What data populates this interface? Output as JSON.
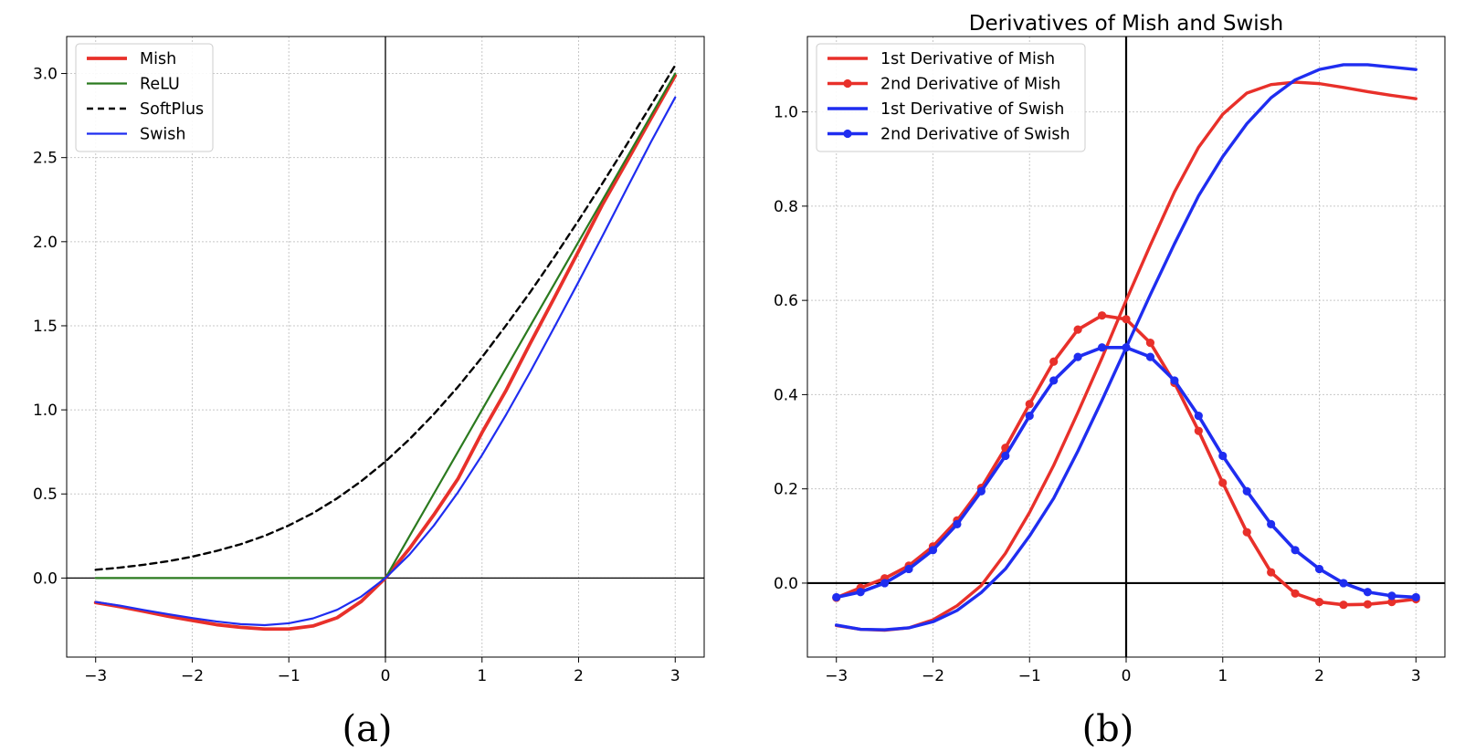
{
  "chart_data": [
    {
      "type": "line",
      "title": "",
      "caption": "(a)",
      "xlabel": "",
      "ylabel": "",
      "xlim": [
        -3.3,
        3.3
      ],
      "ylim": [
        -0.47,
        3.22
      ],
      "xticks": [
        -3,
        -2,
        -1,
        0,
        1,
        2,
        3
      ],
      "xtick_labels": [
        "−3",
        "−2",
        "−1",
        "0",
        "1",
        "2",
        "3"
      ],
      "yticks": [
        0.0,
        0.5,
        1.0,
        1.5,
        2.0,
        2.5,
        3.0
      ],
      "ytick_labels": [
        "0.0",
        "0.5",
        "1.0",
        "1.5",
        "2.0",
        "2.5",
        "3.0"
      ],
      "grid": true,
      "axis_lines_at_zero": true,
      "legend_position": "top-left",
      "x": [
        -3,
        -2.75,
        -2.5,
        -2.25,
        -2,
        -1.75,
        -1.5,
        -1.25,
        -1,
        -0.75,
        -0.5,
        -0.25,
        0,
        0.25,
        0.5,
        0.75,
        1,
        1.25,
        1.5,
        1.75,
        2,
        2.25,
        2.5,
        2.75,
        3
      ],
      "series": [
        {
          "name": "Mish",
          "color": "#e8302a",
          "style": "solid-thick",
          "values": [
            -0.146,
            -0.17,
            -0.198,
            -0.227,
            -0.252,
            -0.277,
            -0.293,
            -0.303,
            -0.303,
            -0.285,
            -0.236,
            -0.139,
            0.0,
            0.176,
            0.375,
            0.589,
            0.865,
            1.117,
            1.397,
            1.668,
            1.944,
            2.224,
            2.477,
            2.733,
            2.987
          ]
        },
        {
          "name": "ReLU",
          "color": "#2b7a1f",
          "style": "solid",
          "values": [
            0,
            0,
            0,
            0,
            0,
            0,
            0,
            0,
            0,
            0,
            0,
            0,
            0,
            0.25,
            0.5,
            0.75,
            1.0,
            1.25,
            1.5,
            1.75,
            2.0,
            2.25,
            2.5,
            2.75,
            3.0
          ]
        },
        {
          "name": "SoftPlus",
          "color": "#000000",
          "style": "dashed",
          "values": [
            0.049,
            0.062,
            0.079,
            0.1,
            0.127,
            0.161,
            0.201,
            0.251,
            0.313,
            0.386,
            0.474,
            0.576,
            0.693,
            0.826,
            0.974,
            1.136,
            1.313,
            1.503,
            1.701,
            1.91,
            2.127,
            2.35,
            2.579,
            2.812,
            3.049
          ]
        },
        {
          "name": "Swish",
          "color": "#1f2df0",
          "style": "solid",
          "values": [
            -0.142,
            -0.164,
            -0.19,
            -0.215,
            -0.238,
            -0.258,
            -0.274,
            -0.28,
            -0.269,
            -0.24,
            -0.189,
            -0.11,
            0.0,
            0.14,
            0.311,
            0.509,
            0.731,
            0.972,
            1.227,
            1.493,
            1.762,
            2.037,
            2.317,
            2.594,
            2.858
          ]
        }
      ]
    },
    {
      "type": "line",
      "title": "Derivatives of Mish and Swish",
      "caption": "(b)",
      "xlabel": "",
      "ylabel": "",
      "xlim": [
        -3.3,
        3.3
      ],
      "ylim": [
        -0.157,
        1.16
      ],
      "xticks": [
        -3,
        -2,
        -1,
        0,
        1,
        2,
        3
      ],
      "xtick_labels": [
        "−3",
        "−2",
        "−1",
        "0",
        "1",
        "2",
        "3"
      ],
      "yticks": [
        0.0,
        0.2,
        0.4,
        0.6,
        0.8,
        1.0
      ],
      "ytick_labels": [
        "0.0",
        "0.2",
        "0.4",
        "0.6",
        "0.8",
        "1.0"
      ],
      "grid": true,
      "axis_lines_at_zero": true,
      "legend_position": "top-left",
      "x": [
        -3,
        -2.75,
        -2.5,
        -2.25,
        -2,
        -1.75,
        -1.5,
        -1.25,
        -1,
        -0.75,
        -0.5,
        -0.25,
        0,
        0.25,
        0.5,
        0.75,
        1,
        1.25,
        1.5,
        1.75,
        2,
        2.25,
        2.5,
        2.75,
        3
      ],
      "series": [
        {
          "name": "1st Derivative of Mish",
          "color": "#e8302a",
          "markers": false,
          "values": [
            -0.09,
            -0.098,
            -0.1,
            -0.095,
            -0.078,
            -0.048,
            -0.005,
            0.063,
            0.15,
            0.25,
            0.362,
            0.478,
            0.6,
            0.717,
            0.83,
            0.925,
            0.995,
            1.04,
            1.058,
            1.063,
            1.06,
            1.052,
            1.043,
            1.035,
            1.028
          ]
        },
        {
          "name": "2nd Derivative of Mish",
          "color": "#e8302a",
          "markers": true,
          "values": [
            -0.031,
            -0.01,
            0.01,
            0.037,
            0.078,
            0.133,
            0.202,
            0.287,
            0.38,
            0.47,
            0.538,
            0.568,
            0.56,
            0.51,
            0.425,
            0.323,
            0.213,
            0.108,
            0.023,
            -0.022,
            -0.04,
            -0.046,
            -0.045,
            -0.04,
            -0.034
          ]
        },
        {
          "name": "1st Derivative of Swish",
          "color": "#1f2df0",
          "markers": false,
          "values": [
            -0.089,
            -0.098,
            -0.099,
            -0.095,
            -0.082,
            -0.058,
            -0.02,
            0.03,
            0.1,
            0.18,
            0.28,
            0.388,
            0.5,
            0.612,
            0.72,
            0.822,
            0.905,
            0.975,
            1.03,
            1.068,
            1.09,
            1.1,
            1.1,
            1.095,
            1.09
          ]
        },
        {
          "name": "2nd Derivative of Swish",
          "color": "#1f2df0",
          "markers": true,
          "values": [
            -0.03,
            -0.019,
            0.0,
            0.03,
            0.07,
            0.125,
            0.195,
            0.27,
            0.355,
            0.43,
            0.48,
            0.5,
            0.5,
            0.48,
            0.43,
            0.355,
            0.27,
            0.195,
            0.125,
            0.07,
            0.03,
            0.0,
            -0.019,
            -0.027,
            -0.03
          ]
        }
      ]
    }
  ]
}
